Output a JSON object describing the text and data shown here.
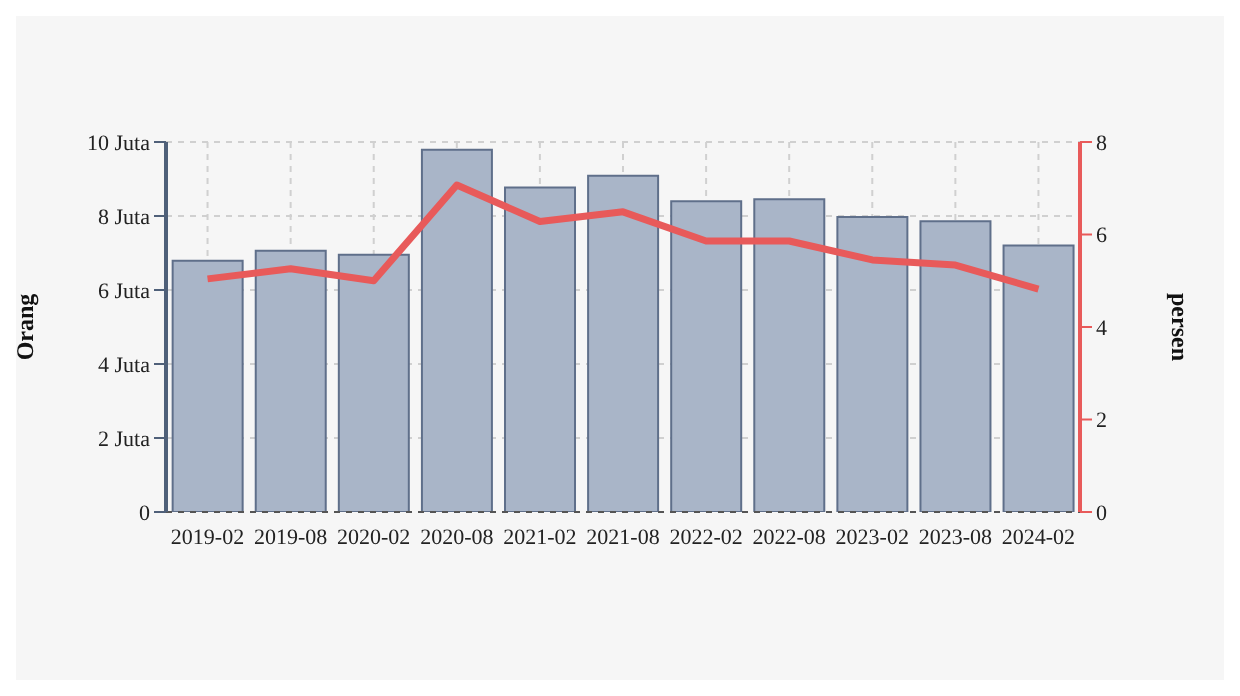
{
  "chart_data": {
    "type": "bar",
    "ylabel": "Orang",
    "y2label": "persen",
    "categories": [
      "2019-02",
      "2019-08",
      "2020-02",
      "2020-08",
      "2021-02",
      "2021-08",
      "2022-02",
      "2022-08",
      "2023-02",
      "2023-08",
      "2024-02"
    ],
    "series": [
      {
        "color": "#a9b5c8",
        "values": [
          6.79,
          7.06,
          6.95,
          9.79,
          8.77,
          9.09,
          8.4,
          8.45,
          7.97,
          7.86,
          7.2
        ]
      },
      {
        "type": "line",
        "axis": "y2",
        "color": "#e85a5a",
        "values": [
          5.04,
          5.26,
          5.0,
          7.07,
          6.28,
          6.49,
          5.86,
          5.86,
          5.45,
          5.34,
          4.82
        ]
      }
    ],
    "ylim": [
      0,
      10
    ],
    "yticks": [
      0,
      {
        "value": 2,
        "label": "2 Juta"
      },
      {
        "value": 4,
        "label": "4 Juta"
      },
      {
        "value": 6,
        "label": "6 Juta"
      },
      {
        "value": 8,
        "label": "8 Juta"
      },
      {
        "value": 10,
        "label": "10 Juta"
      }
    ],
    "y2lim": [
      0,
      8
    ],
    "y2ticks": [
      0,
      2,
      4,
      6,
      8
    ],
    "grid": true,
    "marker": "none",
    "line_style": "solid"
  }
}
